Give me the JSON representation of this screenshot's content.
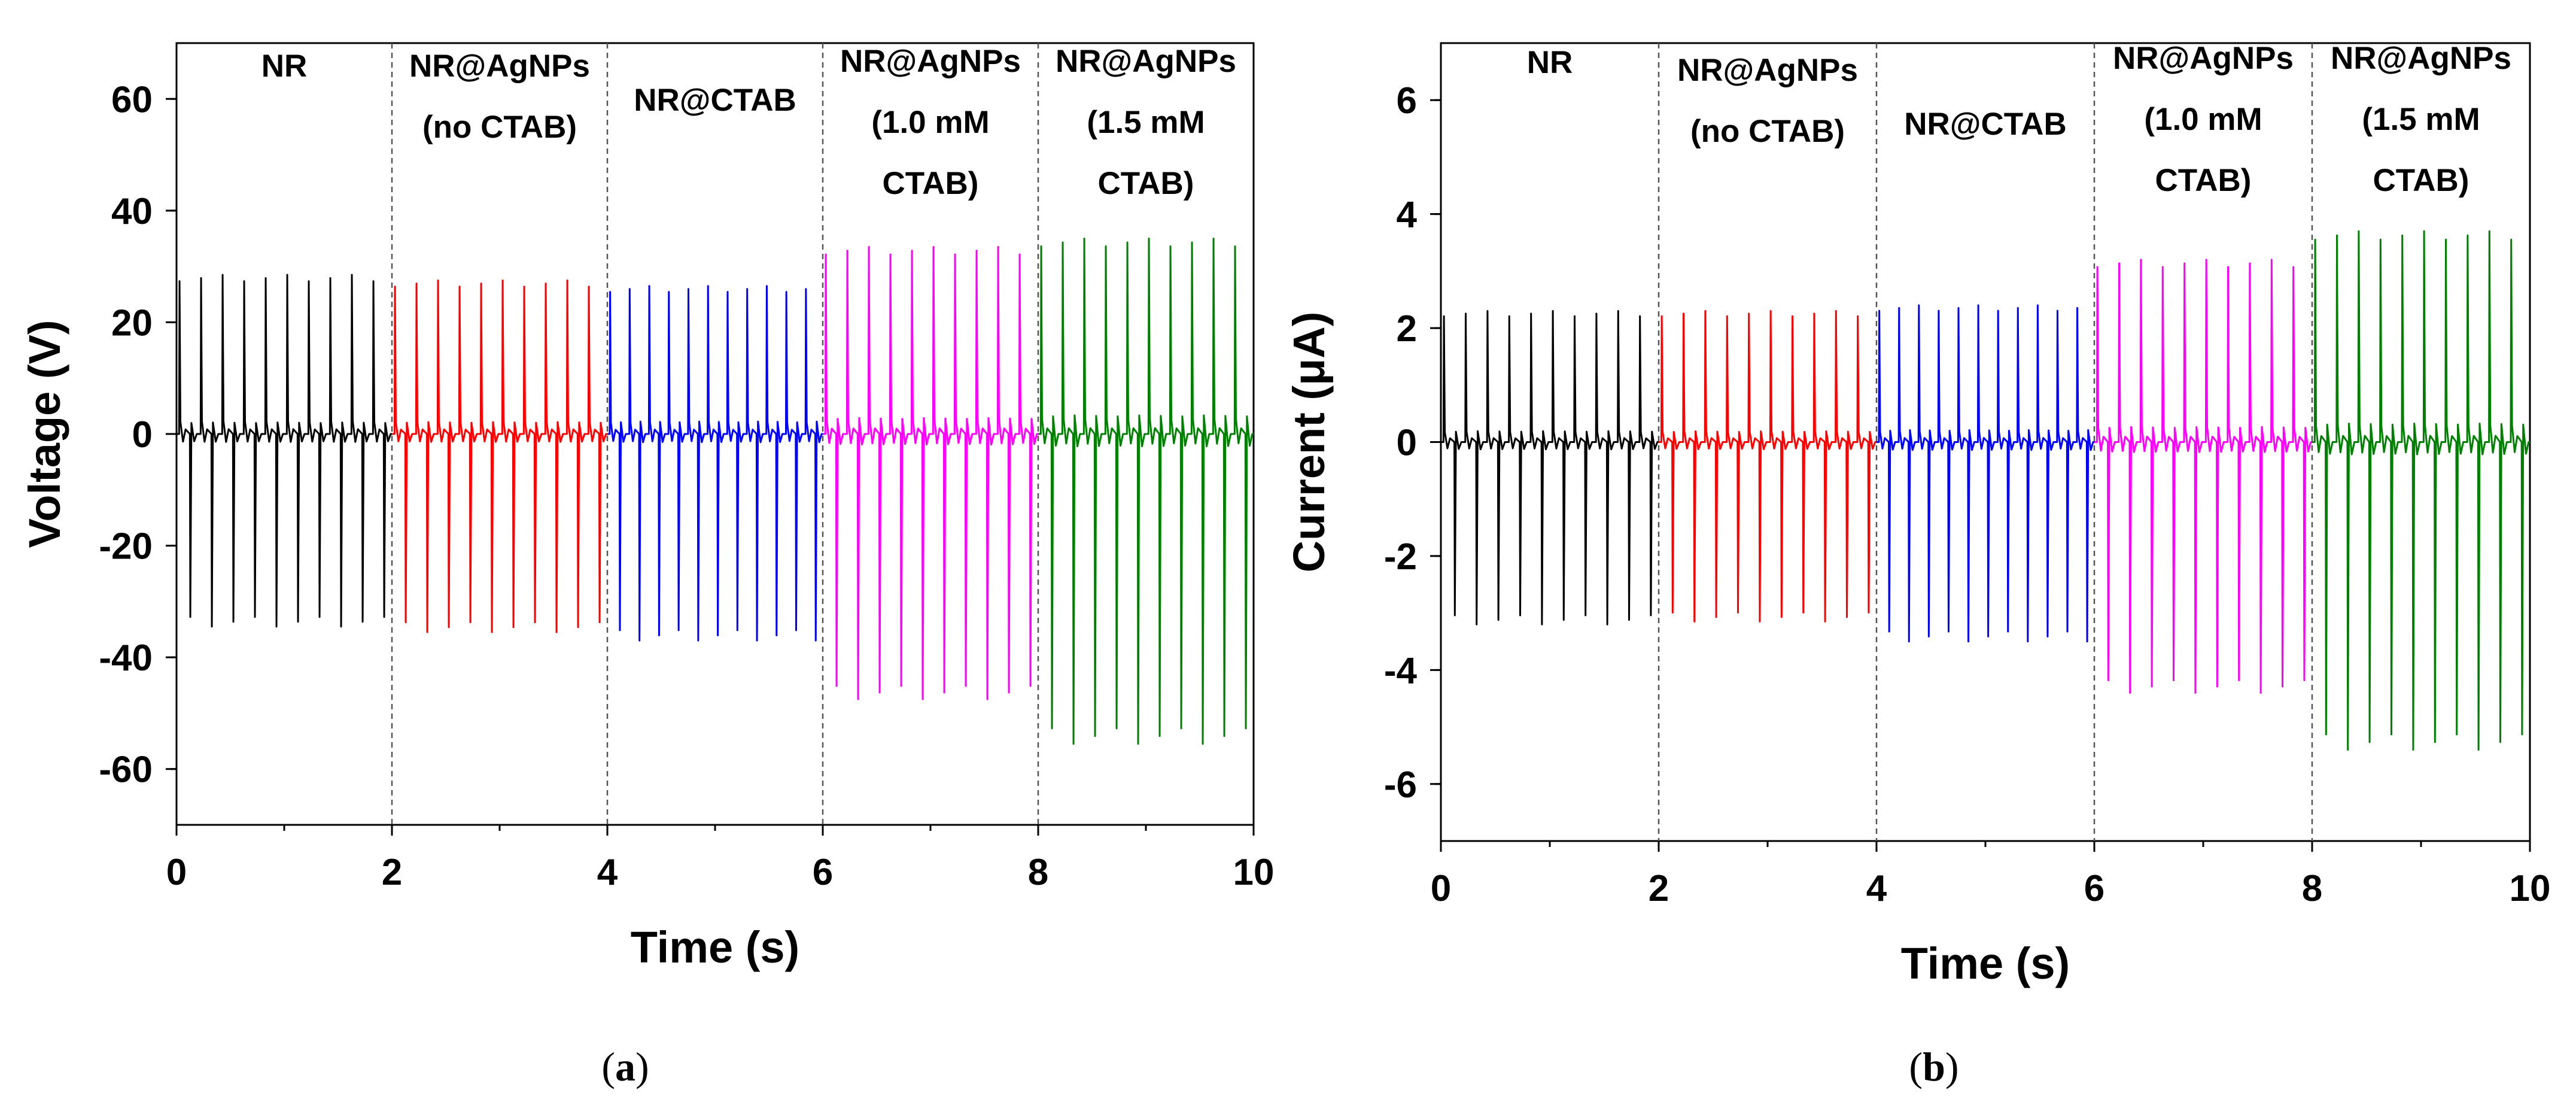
{
  "chart_data": [
    {
      "type": "line",
      "panel": "a",
      "caption_pre": "(",
      "caption_letter": "a",
      "caption_post": ")",
      "xlabel": "Time (s)",
      "ylabel": "Voltage (V)",
      "xlim": [
        0,
        10
      ],
      "ylim": [
        -70,
        70
      ],
      "xticks": [
        0,
        2,
        4,
        6,
        8,
        10
      ],
      "yticks": [
        -60,
        -40,
        -20,
        0,
        20,
        40,
        60
      ],
      "dividers": [
        2,
        4,
        6,
        8
      ],
      "segments": [
        {
          "label_lines": [
            "NR"
          ],
          "x": [
            0,
            2
          ],
          "color": "#000000",
          "pulses": 10,
          "peak_pos": 28.5,
          "peak_neg": -34.5
        },
        {
          "label_lines": [
            "NR@AgNPs",
            "(no CTAB)"
          ],
          "x": [
            2,
            4
          ],
          "color": "#ff0000",
          "pulses": 10,
          "peak_pos": 27.5,
          "peak_neg": -35.5
        },
        {
          "label_lines": [
            "NR@CTAB"
          ],
          "x": [
            4,
            6
          ],
          "color": "#0000ff",
          "pulses": 11,
          "peak_pos": 26.5,
          "peak_neg": -37.0
        },
        {
          "label_lines": [
            "NR@AgNPs",
            "(1.0 mM",
            "CTAB)"
          ],
          "x": [
            6,
            8
          ],
          "color": "#ff00ff",
          "pulses": 10,
          "peak_pos": 33.5,
          "peak_neg": -47.5
        },
        {
          "label_lines": [
            "NR@AgNPs",
            "(1.5 mM",
            "CTAB)"
          ],
          "x": [
            8,
            10
          ],
          "color": "#008000",
          "pulses": 10,
          "peak_pos": 35.0,
          "peak_neg": -55.5
        }
      ]
    },
    {
      "type": "line",
      "panel": "b",
      "caption_pre": "(",
      "caption_letter": "b",
      "caption_post": ")",
      "xlabel": "Time (s)",
      "ylabel": "Current (μA)",
      "xlim": [
        0,
        10
      ],
      "ylim": [
        -7,
        7
      ],
      "xticks": [
        0,
        2,
        4,
        6,
        8,
        10
      ],
      "yticks": [
        -6,
        -4,
        -2,
        0,
        2,
        4,
        6
      ],
      "dividers": [
        2,
        4,
        6,
        8
      ],
      "segments": [
        {
          "label_lines": [
            "NR"
          ],
          "x": [
            0,
            2
          ],
          "color": "#000000",
          "pulses": 10,
          "peak_pos": 2.3,
          "peak_neg": -3.2
        },
        {
          "label_lines": [
            "NR@AgNPs",
            "(no CTAB)"
          ],
          "x": [
            2,
            4
          ],
          "color": "#ff0000",
          "pulses": 10,
          "peak_pos": 2.3,
          "peak_neg": -3.15
        },
        {
          "label_lines": [
            "NR@CTAB"
          ],
          "x": [
            4,
            6
          ],
          "color": "#0000ff",
          "pulses": 11,
          "peak_pos": 2.4,
          "peak_neg": -3.5
        },
        {
          "label_lines": [
            "NR@AgNPs",
            "(1.0 mM",
            "CTAB)"
          ],
          "x": [
            6,
            8
          ],
          "color": "#ff00ff",
          "pulses": 10,
          "peak_pos": 3.2,
          "peak_neg": -4.4
        },
        {
          "label_lines": [
            "NR@AgNPs",
            "(1.5 mM",
            "CTAB)"
          ],
          "x": [
            8,
            10
          ],
          "color": "#008000",
          "pulses": 10,
          "peak_pos": 3.7,
          "peak_neg": -5.4
        }
      ]
    }
  ]
}
